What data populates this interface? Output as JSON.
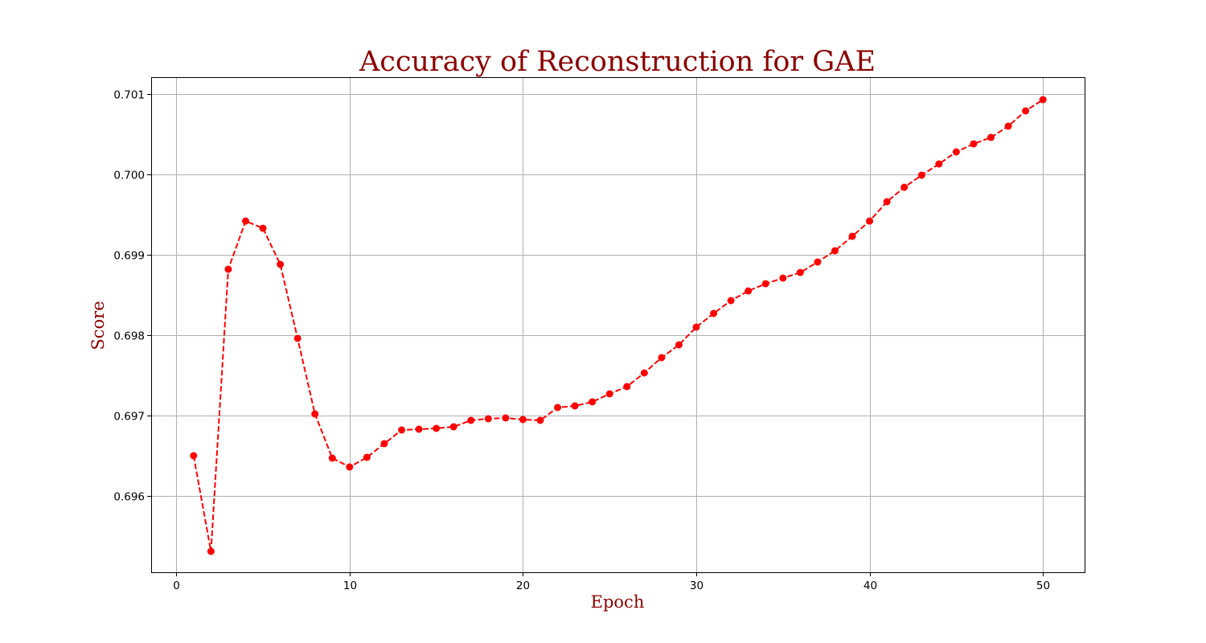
{
  "chart_data": {
    "type": "line",
    "title": "Accuracy of Reconstruction for GAE",
    "xlabel": "Epoch",
    "ylabel": "Score",
    "xlim": [
      -1.45,
      52.45
    ],
    "ylim": [
      0.69505,
      0.70121
    ],
    "xticks": [
      0,
      10,
      20,
      30,
      40,
      50
    ],
    "xtick_labels": [
      "0",
      "10",
      "20",
      "30",
      "40",
      "50"
    ],
    "yticks": [
      0.696,
      0.697,
      0.698,
      0.699,
      0.7,
      0.701
    ],
    "ytick_labels": [
      "0.696",
      "0.697",
      "0.698",
      "0.699",
      "0.700",
      "0.701"
    ],
    "grid": true,
    "legend": false,
    "series": [
      {
        "color": "#ff0000",
        "line_style": "dashed",
        "marker": "circle",
        "x": [
          1,
          2,
          3,
          4,
          5,
          6,
          7,
          8,
          9,
          10,
          11,
          12,
          13,
          14,
          15,
          16,
          17,
          18,
          19,
          20,
          21,
          22,
          23,
          24,
          25,
          26,
          27,
          28,
          29,
          30,
          31,
          32,
          33,
          34,
          35,
          36,
          37,
          38,
          39,
          40,
          41,
          42,
          43,
          44,
          45,
          46,
          47,
          48,
          49,
          50
        ],
        "y": [
          0.6965,
          0.69531,
          0.69882,
          0.69942,
          0.69933,
          0.69888,
          0.69796,
          0.69702,
          0.69647,
          0.69636,
          0.69648,
          0.69665,
          0.69682,
          0.69683,
          0.69684,
          0.69686,
          0.69694,
          0.69696,
          0.69697,
          0.69695,
          0.69694,
          0.6971,
          0.69712,
          0.69717,
          0.69727,
          0.69736,
          0.69753,
          0.69772,
          0.69788,
          0.6981,
          0.69827,
          0.69843,
          0.69855,
          0.69864,
          0.69871,
          0.69878,
          0.69891,
          0.69905,
          0.69923,
          0.69942,
          0.69966,
          0.69984,
          0.69999,
          0.70013,
          0.70028,
          0.70038,
          0.70046,
          0.7006,
          0.70079,
          0.70093
        ]
      }
    ]
  },
  "colors": {
    "title": "#8b0000",
    "series": "#ff0000",
    "grid": "#b0b0b0"
  }
}
